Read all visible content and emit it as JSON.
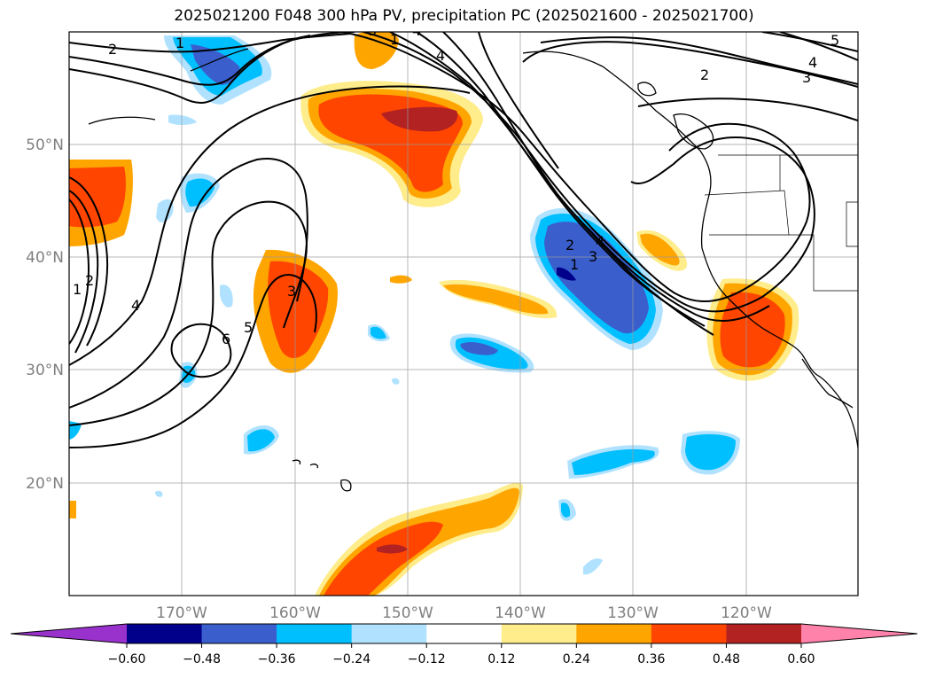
{
  "title": "2025021200 F048 300 hPa PV, precipitation PC (2025021600 - 2025021700)",
  "map": {
    "lat_labels": [
      "50°N",
      "40°N",
      "30°N",
      "20°N"
    ],
    "lon_labels": [
      "170°W",
      "160°W",
      "150°W",
      "140°W",
      "130°W",
      "120°W"
    ],
    "contour_labels": [
      "2",
      "1",
      "4",
      "5",
      "4",
      "3",
      "2",
      "1",
      "4",
      "1",
      "2",
      "3",
      "4",
      "5",
      "6",
      "3",
      "1",
      "2",
      "3",
      "4"
    ]
  },
  "colorbar": {
    "levels": [
      "−0.60",
      "−0.48",
      "−0.36",
      "−0.24",
      "−0.12",
      "0.12",
      "0.24",
      "0.36",
      "0.48",
      "0.60"
    ],
    "colors": [
      "#9932cc",
      "#00008b",
      "#3a5fcd",
      "#00bfff",
      "#b0e2ff",
      "#ffffff",
      "#ffec8b",
      "#ffa500",
      "#ff4500",
      "#b22222",
      "#ff82ab"
    ]
  }
}
